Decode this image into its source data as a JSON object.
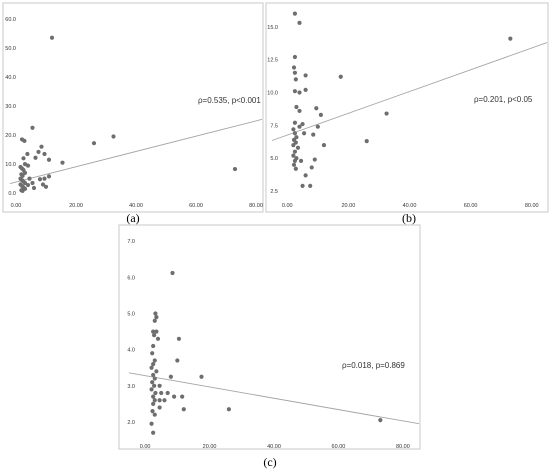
{
  "colors": {
    "point": "#6e6e6e",
    "fit_line": "#a5a5a5",
    "frame": "#c8c8c8",
    "text": "#333333"
  },
  "chart_data": [
    {
      "type": "scatter",
      "panel_label": "(a)",
      "annotation": "ρ=0.535, p<0.001",
      "xlim": [
        -2,
        82
      ],
      "ylim": [
        -2,
        62
      ],
      "x_ticks": [
        0,
        20,
        40,
        60,
        80
      ],
      "x_tick_labels": [
        "0.00",
        "20.00",
        "40.00",
        "60.00",
        "80.00"
      ],
      "y_ticks": [
        0,
        10,
        20,
        30,
        40,
        50,
        60
      ],
      "y_tick_labels": [
        "0.0",
        "10.0",
        "20.0",
        "30.0",
        "40.0",
        "50.0",
        "60.0"
      ],
      "fit_line": [
        [
          -2,
          3.3
        ],
        [
          82,
          25.4
        ]
      ],
      "points": [
        [
          12,
          53.5
        ],
        [
          73,
          8.3
        ],
        [
          32.5,
          19.5
        ],
        [
          26,
          17.2
        ],
        [
          15.5,
          10.5
        ],
        [
          5.5,
          22.5
        ],
        [
          2,
          18.5
        ],
        [
          2.8,
          18
        ],
        [
          3.8,
          13.5
        ],
        [
          8.5,
          16
        ],
        [
          9.5,
          13.5
        ],
        [
          11,
          11.5
        ],
        [
          7.5,
          14.2
        ],
        [
          6.5,
          12.2
        ],
        [
          2.5,
          12
        ],
        [
          3,
          10
        ],
        [
          4,
          9.5
        ],
        [
          1.5,
          9
        ],
        [
          2,
          8.5
        ],
        [
          2.5,
          8
        ],
        [
          3,
          7
        ],
        [
          1.8,
          6.5
        ],
        [
          2.2,
          6
        ],
        [
          4.5,
          5
        ],
        [
          1.5,
          5
        ],
        [
          2,
          4.5
        ],
        [
          2.5,
          4
        ],
        [
          3,
          3.5
        ],
        [
          1.5,
          3
        ],
        [
          2,
          2.5
        ],
        [
          2.5,
          2
        ],
        [
          3,
          1.5
        ],
        [
          1.8,
          1
        ],
        [
          2.2,
          0.8
        ],
        [
          5.5,
          3.5
        ],
        [
          6,
          1.8
        ],
        [
          9,
          3
        ],
        [
          10,
          2.2
        ],
        [
          9.5,
          5
        ],
        [
          11,
          5.8
        ],
        [
          8,
          4.8
        ],
        [
          4,
          2.8
        ]
      ]
    },
    {
      "type": "scatter",
      "panel_label": "(b)",
      "annotation": "ρ=0.201, p<0.05",
      "xlim": [
        -5,
        85
      ],
      "ylim": [
        1.9,
        16.2
      ],
      "x_ticks": [
        0,
        20,
        40,
        60,
        80
      ],
      "x_tick_labels": [
        "0.00",
        "20.00",
        "40.00",
        "60.00",
        "80.00"
      ],
      "y_ticks": [
        2.5,
        5,
        7.5,
        10,
        12.5,
        15
      ],
      "y_tick_labels": [
        "2.5",
        "5.0",
        "7.5",
        "10.0",
        "12.5",
        "15.0"
      ],
      "fit_line": [
        [
          -5,
          6.35
        ],
        [
          85,
          13.8
        ]
      ],
      "points": [
        [
          2.5,
          16
        ],
        [
          4,
          15.3
        ],
        [
          2.5,
          12.7
        ],
        [
          2.2,
          11.9
        ],
        [
          2.5,
          11.5
        ],
        [
          2.8,
          11
        ],
        [
          73,
          14.1
        ],
        [
          17.5,
          11.2
        ],
        [
          6,
          11.3
        ],
        [
          4,
          10
        ],
        [
          6,
          10.2
        ],
        [
          2.5,
          10.1
        ],
        [
          9.5,
          8.8
        ],
        [
          11,
          8.3
        ],
        [
          32.5,
          8.4
        ],
        [
          26,
          6.3
        ],
        [
          12,
          6
        ],
        [
          8.5,
          6.8
        ],
        [
          10,
          7.4
        ],
        [
          5,
          7.6
        ],
        [
          4,
          7.4
        ],
        [
          5.5,
          6.9
        ],
        [
          3,
          8.9
        ],
        [
          4,
          8.6
        ],
        [
          2.5,
          7.7
        ],
        [
          2,
          7.2
        ],
        [
          2.5,
          6.9
        ],
        [
          3,
          6.6
        ],
        [
          2.2,
          6.4
        ],
        [
          2.8,
          6.2
        ],
        [
          2,
          6
        ],
        [
          3.5,
          5.8
        ],
        [
          2.5,
          5.5
        ],
        [
          2,
          5.2
        ],
        [
          3,
          5
        ],
        [
          2.5,
          4.8
        ],
        [
          2.2,
          4.5
        ],
        [
          2.8,
          4.2
        ],
        [
          9,
          4.9
        ],
        [
          8,
          4.3
        ],
        [
          6,
          3.7
        ],
        [
          5,
          2.9
        ],
        [
          7.5,
          2.9
        ],
        [
          4.5,
          4.8
        ]
      ]
    },
    {
      "type": "scatter",
      "panel_label": "(c)",
      "annotation": "ρ=0.018, p=0.869",
      "xlim": [
        -5,
        85
      ],
      "ylim": [
        1.5,
        7.2
      ],
      "x_ticks": [
        0,
        20,
        40,
        60,
        80
      ],
      "x_tick_labels": [
        "0.00",
        "20.00",
        "40.00",
        "60.00",
        "80.00"
      ],
      "y_ticks": [
        2,
        3,
        4,
        5,
        6,
        7
      ],
      "y_tick_labels": [
        "2.0",
        "3.0",
        "4.0",
        "5.0",
        "6.0",
        "7.0"
      ],
      "fit_line": [
        [
          -5,
          3.36
        ],
        [
          85,
          1.95
        ]
      ],
      "points": [
        [
          8.5,
          6.12
        ],
        [
          3.2,
          5
        ],
        [
          3,
          4.8
        ],
        [
          2.5,
          4.5
        ],
        [
          3.5,
          4.5
        ],
        [
          4,
          4.3
        ],
        [
          2.8,
          4.4
        ],
        [
          10.5,
          4.3
        ],
        [
          10,
          3.7
        ],
        [
          2.2,
          3.9
        ],
        [
          3,
          3.7
        ],
        [
          2.5,
          3.6
        ],
        [
          2,
          3.5
        ],
        [
          3.5,
          3.4
        ],
        [
          2.5,
          3.3
        ],
        [
          3,
          3.2
        ],
        [
          2.2,
          3.1
        ],
        [
          2.8,
          3
        ],
        [
          2,
          2.9
        ],
        [
          3.2,
          2.8
        ],
        [
          2.5,
          2.7
        ],
        [
          3,
          2.6
        ],
        [
          4.5,
          3
        ],
        [
          4.5,
          2.6
        ],
        [
          5,
          2.8
        ],
        [
          6,
          2.6
        ],
        [
          7,
          2.8
        ],
        [
          8,
          3.25
        ],
        [
          9,
          2.7
        ],
        [
          11.5,
          2.7
        ],
        [
          12,
          2.35
        ],
        [
          17.5,
          3.25
        ],
        [
          26,
          2.35
        ],
        [
          73,
          2.05
        ],
        [
          2.5,
          2.5
        ],
        [
          2.3,
          2.3
        ],
        [
          3,
          2.2
        ],
        [
          4.5,
          2.4
        ],
        [
          2,
          1.95
        ],
        [
          2.5,
          1.7
        ],
        [
          3.5,
          4.9
        ],
        [
          2.5,
          4.1
        ]
      ]
    }
  ]
}
